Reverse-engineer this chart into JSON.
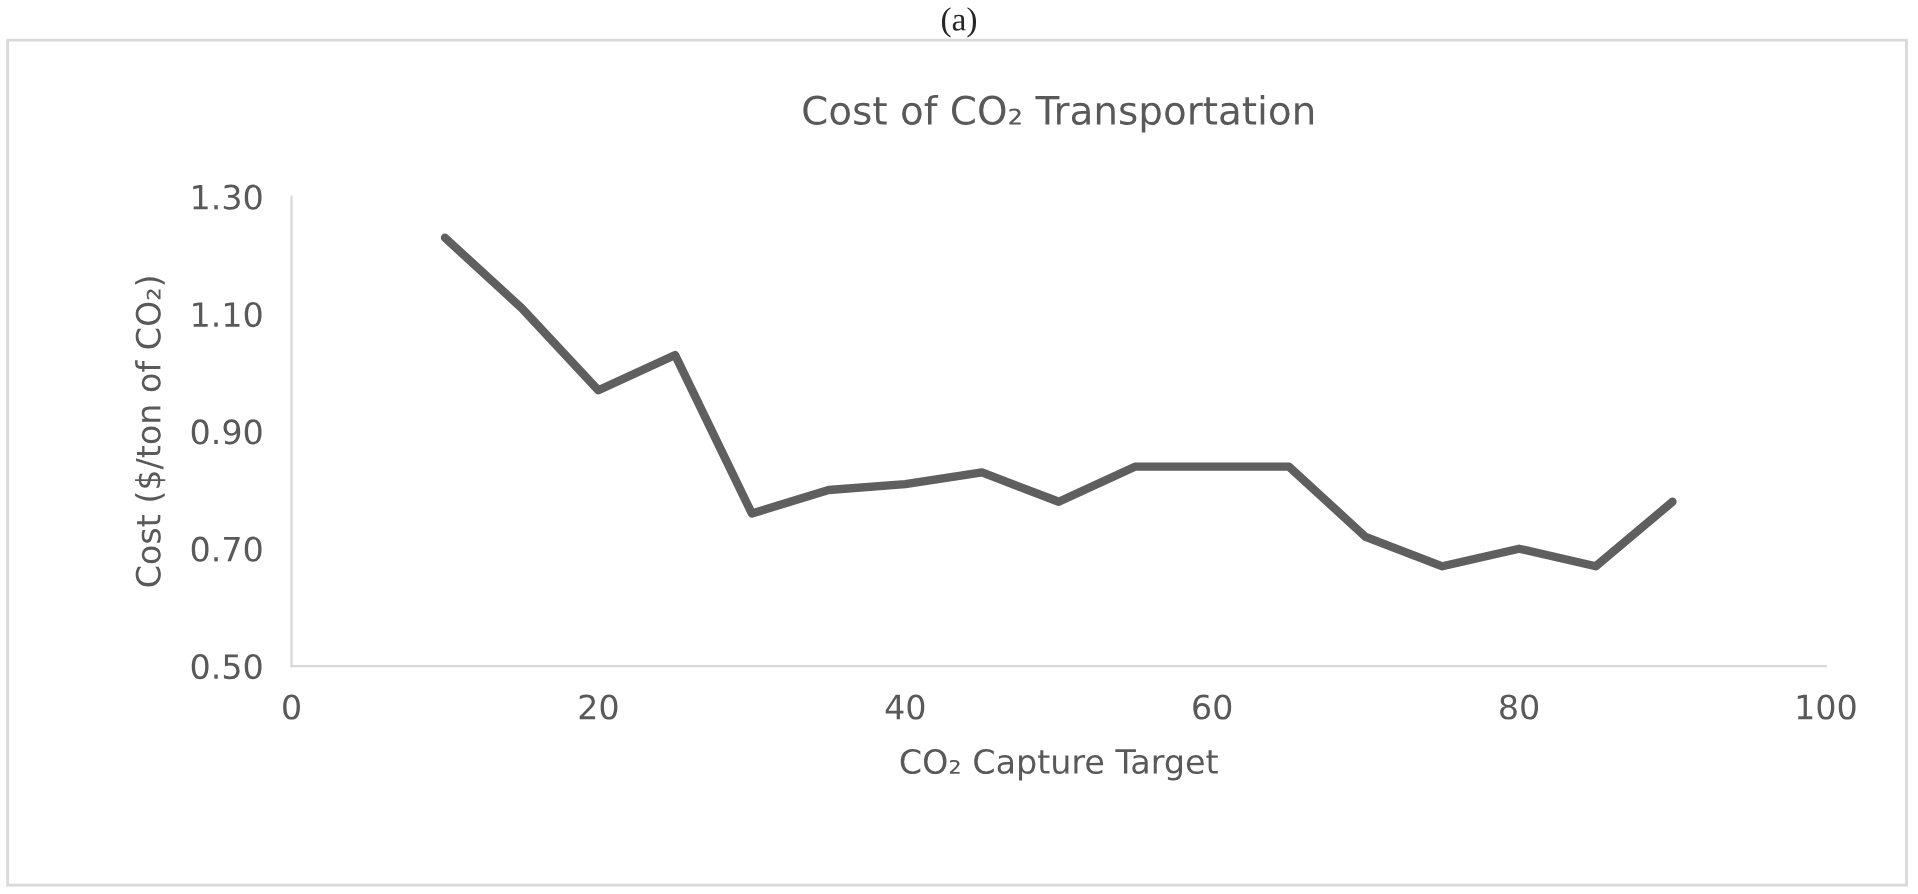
{
  "chart_data": {
    "type": "line",
    "title": "Cost of CO₂ Transportation",
    "xlabel": "CO₂ Capture Target",
    "ylabel": "Cost ($/ton of CO₂)",
    "annotations": [
      "(a)"
    ],
    "x": [
      10,
      15,
      20,
      25,
      30,
      35,
      40,
      45,
      50,
      55,
      60,
      65,
      70,
      75,
      80,
      85,
      90
    ],
    "series": [
      {
        "color": "#5f5f5f",
        "values": [
          1.23,
          1.11,
          0.97,
          1.03,
          0.76,
          0.8,
          0.81,
          0.83,
          0.78,
          0.84,
          0.84,
          0.84,
          0.72,
          0.67,
          0.7,
          0.67,
          0.78
        ]
      }
    ],
    "xlim": [
      0,
      100
    ],
    "xticks": [
      0,
      20,
      40,
      60,
      80,
      100
    ],
    "ylim": [
      0.5,
      1.3
    ],
    "yticks": [
      {
        "value": 0.5,
        "label": "0.50"
      },
      {
        "value": 0.7,
        "label": "0.70"
      },
      {
        "value": 0.9,
        "label": "0.90"
      },
      {
        "value": 1.1,
        "label": "1.10"
      },
      {
        "value": 1.3,
        "label": "1.30"
      }
    ],
    "grid": false,
    "legend": false,
    "marker": "none",
    "line_style": "solid"
  }
}
